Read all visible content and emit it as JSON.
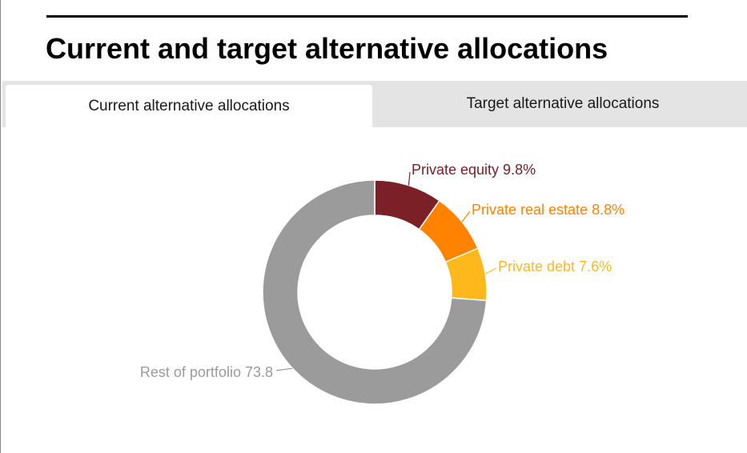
{
  "title": "Current and target alternative allocations",
  "tabs": [
    {
      "label": "Current alternative allocations",
      "active": true
    },
    {
      "label": "Target alternative allocations",
      "active": false
    }
  ],
  "chart_data": {
    "type": "pie",
    "donut": true,
    "slices": [
      {
        "name": "Private equity",
        "value": 9.8,
        "label": "Private equity 9.8%",
        "color": "#7a2026",
        "text_color": "#7a2026"
      },
      {
        "name": "Private real estate",
        "value": 8.8,
        "label": "Private real estate 8.8%",
        "color": "#ff8200",
        "text_color": "#ff8200"
      },
      {
        "name": "Private debt",
        "value": 7.6,
        "label": "Private debt 7.6%",
        "color": "#ffb81c",
        "text_color": "#ffb81c"
      },
      {
        "name": "Rest of portfolio",
        "value": 73.8,
        "label": "Rest of portfolio 73.8",
        "color": "#9b9b9b",
        "text_color": "#9b9b9b"
      }
    ]
  }
}
